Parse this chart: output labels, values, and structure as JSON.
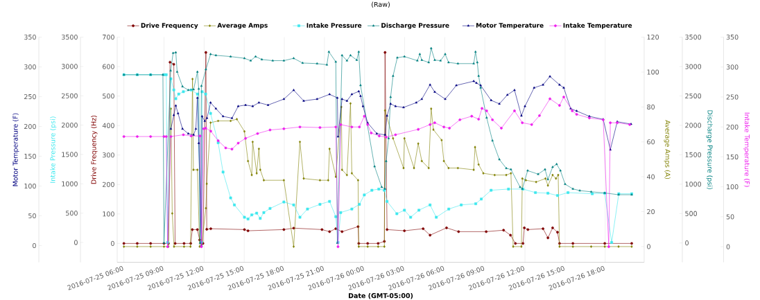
{
  "chart_data": [
    {
      "type": "line",
      "title": "(Raw)",
      "xlabel": "Date (GMT-05:00)",
      "ylabel": "Drive Frequency (Hz)",
      "y2label": "Average Amps (A)",
      "xlim": [
        "2016-07-25T05:30",
        "2016-07-26T20:55"
      ],
      "xticks": [
        {
          "value": "2016-07-25T06:00",
          "label": "2016-07-25 06:00"
        },
        {
          "value": "2016-07-25T09:00",
          "label": "2016-07-25 09:00"
        },
        {
          "value": "2016-07-25T12:00",
          "label": "2016-07-25 12:00"
        },
        {
          "value": "2016-07-25T15:00",
          "label": "2016-07-25 15:00"
        },
        {
          "value": "2016-07-25T18:00",
          "label": "2016-07-25 18:00"
        },
        {
          "value": "2016-07-25T21:00",
          "label": "2016-07-25 21:00"
        },
        {
          "value": "2016-07-26T00:00",
          "label": "2016-07-26 00:00"
        },
        {
          "value": "2016-07-26T03:00",
          "label": "2016-07-26 03:00"
        },
        {
          "value": "2016-07-26T06:00",
          "label": "2016-07-26 06:00"
        },
        {
          "value": "2016-07-26T09:00",
          "label": "2016-07-26 09:00"
        },
        {
          "value": "2016-07-26T12:00",
          "label": "2016-07-26 12:00"
        },
        {
          "value": "2016-07-26T15:00",
          "label": "2016-07-26 15:00"
        },
        {
          "value": "2016-07-26T18:00",
          "label": "2016-07-26 18:00"
        }
      ],
      "ylim": [
        -64,
        700
      ],
      "yticks": [
        0,
        100,
        200,
        300,
        400,
        500,
        600,
        700
      ],
      "y2lim": [
        -9,
        120
      ],
      "y2ticks": [
        0,
        20,
        40,
        60,
        80,
        100,
        120
      ],
      "grid": "x",
      "legend": "top",
      "series": [
        {
          "name": "Drive Frequency",
          "color": "#800000",
          "marker": "circle",
          "x": [
            "2016-07-25T06:00",
            "2016-07-25T07:00",
            "2016-07-25T08:00",
            "2016-07-25T09:00",
            "2016-07-25T09:20",
            "2016-07-25T09:27",
            "2016-07-25T09:44",
            "2016-07-25T09:50",
            "2016-07-25T10:30",
            "2016-07-25T11:00",
            "2016-07-25T11:07",
            "2016-07-25T11:30",
            "2016-07-25T11:40",
            "2016-07-25T11:48",
            "2016-07-25T11:55",
            "2016-07-25T12:08",
            "2016-07-25T12:12",
            "2016-07-25T12:30",
            "2016-07-25T15:01",
            "2016-07-25T15:17",
            "2016-07-25T17:58",
            "2016-07-25T18:42",
            "2016-07-25T20:49",
            "2016-07-25T21:23",
            "2016-07-25T21:51",
            "2016-07-25T22:19",
            "2016-07-25T23:31",
            "2016-07-25T23:34",
            "2016-07-26T00:14",
            "2016-07-26T01:01",
            "2016-07-26T01:29",
            "2016-07-26T01:32",
            "2016-07-26T01:41",
            "2016-07-26T02:59",
            "2016-07-26T04:23",
            "2016-07-26T04:54",
            "2016-07-26T06:08",
            "2016-07-26T07:02",
            "2016-07-26T09:06",
            "2016-07-26T10:24",
            "2016-07-26T10:55",
            "2016-07-26T11:17",
            "2016-07-26T11:51",
            "2016-07-26T11:57",
            "2016-07-26T12:13",
            "2016-07-26T13:21",
            "2016-07-26T13:43",
            "2016-07-26T14:04",
            "2016-07-26T14:26",
            "2016-07-26T14:35",
            "2016-07-26T15:35",
            "2016-07-26T17:58",
            "2016-07-26T19:59"
          ],
          "values": [
            0,
            0,
            0,
            0,
            0,
            615,
            608,
            0,
            0,
            0,
            47,
            47,
            12,
            0,
            0,
            648,
            48,
            50,
            47,
            43,
            47,
            52,
            47,
            40,
            50,
            40,
            57,
            0,
            0,
            0,
            7,
            648,
            47,
            43,
            50,
            28,
            53,
            40,
            40,
            45,
            28,
            0,
            0,
            53,
            47,
            50,
            19,
            53,
            38,
            0,
            0,
            0,
            0
          ]
        },
        {
          "name": "Average Amps",
          "color": "#808000",
          "axis": "y2",
          "marker": "diamond",
          "x": [
            "2016-07-25T06:00",
            "2016-07-25T07:00",
            "2016-07-25T08:00",
            "2016-07-25T09:00",
            "2016-07-25T09:20",
            "2016-07-25T09:31",
            "2016-07-25T09:37",
            "2016-07-25T09:45",
            "2016-07-25T10:30",
            "2016-07-25T10:59",
            "2016-07-25T11:08",
            "2016-07-25T11:12",
            "2016-07-25T11:30",
            "2016-07-25T11:40",
            "2016-07-25T11:48",
            "2016-07-25T12:08",
            "2016-07-25T12:12",
            "2016-07-25T12:29",
            "2016-07-25T13:03",
            "2016-07-25T13:59",
            "2016-07-25T14:27",
            "2016-07-25T15:01",
            "2016-07-25T15:17",
            "2016-07-25T15:34",
            "2016-07-25T15:38",
            "2016-07-25T15:56",
            "2016-07-25T16:06",
            "2016-07-25T16:12",
            "2016-07-25T16:28",
            "2016-07-25T17:58",
            "2016-07-25T18:42",
            "2016-07-25T19:10",
            "2016-07-25T19:27",
            "2016-07-25T20:40",
            "2016-07-25T21:17",
            "2016-07-25T21:23",
            "2016-07-25T21:51",
            "2016-07-25T22:16",
            "2016-07-25T22:19",
            "2016-07-25T22:41",
            "2016-07-25T22:57",
            "2016-07-25T23:03",
            "2016-07-25T23:31",
            "2016-07-25T23:34",
            "2016-07-26T00:14",
            "2016-07-26T01:01",
            "2016-07-26T01:29",
            "2016-07-26T01:32",
            "2016-07-26T02:08",
            "2016-07-26T02:55",
            "2016-07-26T02:59",
            "2016-07-26T03:42",
            "2016-07-26T04:01",
            "2016-07-26T04:17",
            "2016-07-26T04:48",
            "2016-07-26T04:59",
            "2016-07-26T05:09",
            "2016-07-26T05:46",
            "2016-07-26T05:56",
            "2016-07-26T06:17",
            "2016-07-26T06:59",
            "2016-07-26T08:10",
            "2016-07-26T08:16",
            "2016-07-26T08:32",
            "2016-07-26T08:53",
            "2016-07-26T09:44",
            "2016-07-26T10:36",
            "2016-07-26T10:57",
            "2016-07-26T11:07",
            "2016-07-26T11:44",
            "2016-07-26T11:48",
            "2016-07-26T12:04",
            "2016-07-26T12:50",
            "2016-07-26T13:32",
            "2016-07-26T13:43",
            "2016-07-26T14:04",
            "2016-07-26T14:19",
            "2016-07-26T14:29",
            "2016-07-26T14:35",
            "2016-07-26T15:35",
            "2016-07-26T16:57",
            "2016-07-26T17:58",
            "2016-07-26T19:00",
            "2016-07-26T19:59"
          ],
          "values": [
            0,
            0,
            0,
            0,
            0,
            79,
            19,
            0,
            0,
            0,
            96,
            44,
            44,
            0,
            0,
            22,
            36,
            71,
            72,
            72,
            73,
            66,
            49,
            41,
            60,
            42,
            56,
            44,
            38,
            38,
            0,
            60,
            39,
            38,
            38,
            56,
            40,
            80,
            44,
            41,
            82,
            42,
            38,
            0,
            0,
            0,
            0,
            78,
            62,
            45,
            62,
            45,
            59,
            49,
            45,
            79,
            67,
            61,
            49,
            45,
            45,
            44,
            57,
            47,
            42,
            41,
            41,
            42,
            0,
            0,
            39,
            38,
            37,
            39,
            35,
            41,
            39,
            41,
            0,
            0,
            0,
            0,
            0,
            0
          ]
        }
      ]
    },
    {
      "type": "line",
      "ylabel": "Intake Pressure (psi)",
      "y2label": "Discharge Pressure (psi)",
      "xlim": [
        "2016-07-25T05:30",
        "2016-07-26T20:55"
      ],
      "xticks": [
        {
          "value": "2016-07-25T06:00",
          "label": null
        },
        {
          "value": "2016-07-25T09:00",
          "label": null
        },
        {
          "value": "2016-07-25T12:00",
          "label": null
        },
        {
          "value": "2016-07-25T15:00",
          "label": null
        },
        {
          "value": "2016-07-25T18:00",
          "label": null
        },
        {
          "value": "2016-07-25T21:00",
          "label": null
        },
        {
          "value": "2016-07-26T00:00",
          "label": null
        },
        {
          "value": "2016-07-26T03:00",
          "label": null
        },
        {
          "value": "2016-07-26T06:00",
          "label": null
        },
        {
          "value": "2016-07-26T09:00",
          "label": null
        },
        {
          "value": "2016-07-26T12:00",
          "label": null
        },
        {
          "value": "2016-07-26T15:00",
          "label": null
        },
        {
          "value": "2016-07-26T18:00",
          "label": null
        }
      ],
      "ylim": [
        -338,
        3500
      ],
      "yticks": [
        0,
        500,
        1000,
        1500,
        2000,
        2500,
        3000,
        3500
      ],
      "y2lim": [
        -329,
        3500
      ],
      "y2ticks": [
        0,
        500,
        1000,
        1500,
        2000,
        2500,
        3000,
        3500
      ],
      "tick_labels": "y",
      "legend": "top",
      "series": [
        {
          "name": "Intake Pressure",
          "color": "#3ee8ee",
          "marker": "square",
          "x": [
            "2016-07-25T06:00",
            "2016-07-25T07:00",
            "2016-07-25T08:00",
            "2016-07-25T09:00",
            "2016-07-25T09:10",
            "2016-07-25T09:16",
            "2016-07-25T09:31",
            "2016-07-25T09:44",
            "2016-07-25T09:53",
            "2016-07-25T10:06",
            "2016-07-25T10:27",
            "2016-07-25T11:02",
            "2016-07-25T11:30",
            "2016-07-25T11:48",
            "2016-07-25T11:51",
            "2016-07-25T12:07",
            "2016-07-25T12:29",
            "2016-07-25T13:03",
            "2016-07-25T13:25",
            "2016-07-25T13:59",
            "2016-07-25T14:16",
            "2016-07-25T15:01",
            "2016-07-25T15:17",
            "2016-07-25T15:34",
            "2016-07-25T15:56",
            "2016-07-25T16:12",
            "2016-07-25T16:28",
            "2016-07-25T16:56",
            "2016-07-25T17:58",
            "2016-07-25T18:42",
            "2016-07-25T19:10",
            "2016-07-25T19:44",
            "2016-07-25T20:40",
            "2016-07-25T21:23",
            "2016-07-25T21:51",
            "2016-07-25T22:01",
            "2016-07-25T22:13",
            "2016-07-25T23:03",
            "2016-07-25T23:37",
            "2016-07-25T23:59",
            "2016-07-26T00:33",
            "2016-07-26T01:04",
            "2016-07-26T01:29",
            "2016-07-26T01:41",
            "2016-07-26T02:25",
            "2016-07-26T02:59",
            "2016-07-26T03:27",
            "2016-07-26T04:04",
            "2016-07-26T04:54",
            "2016-07-26T05:22",
            "2016-07-26T06:18",
            "2016-07-26T07:14",
            "2016-07-26T08:19",
            "2016-07-26T08:44",
            "2016-07-26T09:28",
            "2016-07-26T10:46",
            "2016-07-26T11:51",
            "2016-07-26T12:47",
            "2016-07-26T13:43",
            "2016-07-26T14:26",
            "2016-07-26T15:13",
            "2016-07-26T17:02",
            "2016-07-26T17:58",
            "2016-07-26T18:29",
            "2016-07-26T19:01",
            "2016-07-26T19:59"
          ],
          "values": [
            2860,
            2860,
            2860,
            2860,
            2860,
            0,
            2790,
            2600,
            2450,
            2530,
            2570,
            2600,
            2530,
            0,
            2570,
            2530,
            2200,
            1700,
            1200,
            760,
            640,
            430,
            400,
            470,
            500,
            410,
            510,
            580,
            690,
            640,
            430,
            570,
            650,
            700,
            440,
            0,
            510,
            570,
            650,
            810,
            890,
            910,
            890,
            700,
            490,
            550,
            430,
            550,
            640,
            430,
            570,
            640,
            660,
            740,
            890,
            910,
            910,
            850,
            840,
            800,
            850,
            830,
            840,
            0,
            830,
            830
          ]
        },
        {
          "name": "Discharge Pressure",
          "color": "#008080",
          "axis": "y2",
          "marker": "triangle",
          "x": [
            "2016-07-25T06:00",
            "2016-07-25T07:00",
            "2016-07-25T08:00",
            "2016-07-25T08:55",
            "2016-07-25T09:00",
            "2016-07-25T09:30",
            "2016-07-25T09:41",
            "2016-07-25T09:53",
            "2016-07-25T09:59",
            "2016-07-25T10:23",
            "2016-07-25T10:49",
            "2016-07-25T11:13",
            "2016-07-25T11:30",
            "2016-07-25T11:36",
            "2016-07-25T11:42",
            "2016-07-25T11:48",
            "2016-07-25T12:08",
            "2016-07-25T12:29",
            "2016-07-25T12:53",
            "2016-07-25T13:59",
            "2016-07-25T15:01",
            "2016-07-25T15:29",
            "2016-07-25T15:51",
            "2016-07-25T16:19",
            "2016-07-25T17:08",
            "2016-07-25T17:58",
            "2016-07-25T18:42",
            "2016-07-25T19:22",
            "2016-07-25T20:27",
            "2016-07-25T21:11",
            "2016-07-25T21:20",
            "2016-07-25T21:51",
            "2016-07-25T21:58",
            "2016-07-25T22:19",
            "2016-07-25T22:41",
            "2016-07-25T22:57",
            "2016-07-25T23:25",
            "2016-07-25T23:34",
            "2016-07-25T23:42",
            "2016-07-26T00:45",
            "2016-07-26T01:17",
            "2016-07-26T01:32",
            "2016-07-26T01:37",
            "2016-07-26T01:48",
            "2016-07-26T01:57",
            "2016-07-26T02:08",
            "2016-07-26T02:27",
            "2016-07-26T02:59",
            "2016-07-26T03:57",
            "2016-07-26T04:08",
            "2016-07-26T04:17",
            "2016-07-26T04:48",
            "2016-07-26T04:59",
            "2016-07-26T05:15",
            "2016-07-26T05:41",
            "2016-07-26T06:02",
            "2016-07-26T06:17",
            "2016-07-26T06:59",
            "2016-07-26T08:10",
            "2016-07-26T08:18",
            "2016-07-26T08:26",
            "2016-07-26T08:32",
            "2016-07-26T08:41",
            "2016-07-26T09:08",
            "2016-07-26T09:34",
            "2016-07-26T10:05",
            "2016-07-26T10:36",
            "2016-07-26T10:57",
            "2016-07-26T11:38",
            "2016-07-26T11:48",
            "2016-07-26T12:12",
            "2016-07-26T12:59",
            "2016-07-26T13:30",
            "2016-07-26T13:43",
            "2016-07-26T14:04",
            "2016-07-26T14:22",
            "2016-07-26T14:39",
            "2016-07-26T15:00",
            "2016-07-26T15:35",
            "2016-07-26T16:06",
            "2016-07-26T16:57",
            "2016-07-26T17:58",
            "2016-07-26T19:00",
            "2016-07-26T19:59"
          ],
          "values": [
            2860,
            2860,
            2860,
            2860,
            0,
            2930,
            3230,
            3240,
            2910,
            2660,
            2600,
            2610,
            2910,
            2620,
            0,
            2670,
            2950,
            3210,
            3190,
            3170,
            3140,
            3100,
            3170,
            3120,
            3100,
            3100,
            3140,
            3060,
            3050,
            3030,
            3250,
            3080,
            0,
            3190,
            3100,
            3190,
            3110,
            3250,
            2680,
            1300,
            950,
            920,
            1390,
            1780,
            2480,
            2840,
            3150,
            3170,
            3100,
            3210,
            3110,
            3070,
            3310,
            3110,
            3100,
            3210,
            3070,
            3050,
            3050,
            3250,
            3070,
            2840,
            2640,
            2130,
            1740,
            1420,
            1270,
            1250,
            950,
            920,
            1230,
            1170,
            1250,
            1080,
            1290,
            1340,
            1230,
            1000,
            920,
            890,
            870,
            850,
            820,
            820
          ]
        }
      ]
    },
    {
      "type": "line",
      "ylabel": "Motor Temperature (F)",
      "y2label": "Intake Temperature (F)",
      "xlim": [
        "2016-07-25T05:30",
        "2016-07-26T20:55"
      ],
      "xticks": [
        {
          "value": "2016-07-25T06:00",
          "label": null
        },
        {
          "value": "2016-07-25T09:00",
          "label": null
        },
        {
          "value": "2016-07-25T12:00",
          "label": null
        },
        {
          "value": "2016-07-25T15:00",
          "label": null
        },
        {
          "value": "2016-07-25T18:00",
          "label": null
        },
        {
          "value": "2016-07-25T21:00",
          "label": null
        },
        {
          "value": "2016-07-26T00:00",
          "label": null
        },
        {
          "value": "2016-07-26T03:00",
          "label": null
        },
        {
          "value": "2016-07-26T06:00",
          "label": null
        },
        {
          "value": "2016-07-26T09:00",
          "label": null
        },
        {
          "value": "2016-07-26T12:00",
          "label": null
        },
        {
          "value": "2016-07-26T15:00",
          "label": null
        },
        {
          "value": "2016-07-26T18:00",
          "label": null
        }
      ],
      "ylim": [
        -28,
        350
      ],
      "yticks": [
        0,
        50,
        100,
        150,
        200,
        250,
        300,
        350
      ],
      "y2lim": [
        -26,
        350
      ],
      "y2ticks": [
        0,
        50,
        100,
        150,
        200,
        250,
        300,
        350
      ],
      "tick_labels": "y",
      "legend": "top",
      "series": [
        {
          "name": "Motor Temperature",
          "color": "#000080",
          "marker": "triangle",
          "x": [
            "2016-07-25T09:31",
            "2016-07-25T09:44",
            "2016-07-25T09:53",
            "2016-07-25T10:03",
            "2016-07-25T10:23",
            "2016-07-25T10:49",
            "2016-07-25T11:13",
            "2016-07-25T11:23",
            "2016-07-25T11:30",
            "2016-07-25T11:36",
            "2016-07-25T11:48",
            "2016-07-25T11:51",
            "2016-07-25T12:03",
            "2016-07-25T12:13",
            "2016-07-25T12:29",
            "2016-07-25T12:53",
            "2016-07-25T13:25",
            "2016-07-25T14:05",
            "2016-07-25T14:33",
            "2016-07-25T15:06",
            "2016-07-25T15:38",
            "2016-07-25T16:06",
            "2016-07-25T16:47",
            "2016-07-25T17:58",
            "2016-07-25T18:42",
            "2016-07-25T19:27",
            "2016-07-25T20:27",
            "2016-07-25T21:23",
            "2016-07-25T21:58",
            "2016-07-25T22:01",
            "2016-07-25T22:19",
            "2016-07-25T22:41",
            "2016-07-25T23:03",
            "2016-07-25T23:34",
            "2016-07-25T23:42",
            "2016-07-25T23:53",
            "2016-07-26T00:14",
            "2016-07-26T00:55",
            "2016-07-26T01:32",
            "2016-07-26T01:41",
            "2016-07-26T01:57",
            "2016-07-26T02:19",
            "2016-07-26T02:55",
            "2016-07-26T03:52",
            "2016-07-26T04:17",
            "2016-07-26T04:54",
            "2016-07-26T05:15",
            "2016-07-26T06:02",
            "2016-07-26T06:52",
            "2016-07-26T08:10",
            "2016-07-26T08:22",
            "2016-07-26T08:41",
            "2016-07-26T09:28",
            "2016-07-26T10:05",
            "2016-07-26T10:41",
            "2016-07-26T11:13",
            "2016-07-26T11:44",
            "2016-07-26T12:00",
            "2016-07-26T12:41",
            "2016-07-26T13:21",
            "2016-07-26T13:52",
            "2016-07-26T14:35",
            "2016-07-26T14:54",
            "2016-07-26T15:25",
            "2016-07-26T15:52",
            "2016-07-26T16:49",
            "2016-07-26T17:51",
            "2016-07-26T18:23",
            "2016-07-26T18:54",
            "2016-07-26T19:56"
          ],
          "values": [
            196,
            219,
            235,
            222,
            196,
            188,
            186,
            196,
            248,
            172,
            0,
            217,
            209,
            214,
            240,
            230,
            217,
            214,
            234,
            236,
            234,
            240,
            236,
            246,
            261,
            243,
            246,
            254,
            248,
            183,
            246,
            243,
            254,
            259,
            251,
            234,
            206,
            188,
            186,
            218,
            238,
            234,
            232,
            240,
            246,
            270,
            258,
            246,
            269,
            276,
            273,
            269,
            244,
            238,
            253,
            261,
            218,
            234,
            265,
            270,
            284,
            270,
            265,
            230,
            226,
            217,
            212,
            161,
            208,
            204
          ]
        },
        {
          "name": "Intake Temperature",
          "color": "#ee22ee",
          "axis": "y2",
          "marker": "circle",
          "x": [
            "2016-07-25T06:00",
            "2016-07-25T07:00",
            "2016-07-25T08:00",
            "2016-07-25T09:00",
            "2016-07-25T09:10",
            "2016-07-25T09:16",
            "2016-07-25T09:31",
            "2016-07-25T10:27",
            "2016-07-25T11:02",
            "2016-07-25T11:42",
            "2016-07-25T11:48",
            "2016-07-25T11:58",
            "2016-07-25T12:07",
            "2016-07-25T12:30",
            "2016-07-25T13:03",
            "2016-07-25T13:37",
            "2016-07-25T14:05",
            "2016-07-25T14:33",
            "2016-07-25T15:06",
            "2016-07-25T16:00",
            "2016-07-25T16:56",
            "2016-07-25T17:58",
            "2016-07-25T19:10",
            "2016-07-25T20:40",
            "2016-07-25T21:51",
            "2016-07-25T22:01",
            "2016-07-25T22:13",
            "2016-07-25T23:03",
            "2016-07-25T23:37",
            "2016-07-25T23:59",
            "2016-07-26T00:14",
            "2016-07-26T00:30",
            "2016-07-26T01:06",
            "2016-07-26T01:37",
            "2016-07-26T02:19",
            "2016-07-26T04:01",
            "2016-07-26T04:54",
            "2016-07-26T05:15",
            "2016-07-26T05:56",
            "2016-07-26T06:21",
            "2016-07-26T07:08",
            "2016-07-26T08:01",
            "2016-07-26T08:32",
            "2016-07-26T08:47",
            "2016-07-26T09:08",
            "2016-07-26T09:34",
            "2016-07-26T10:14",
            "2016-07-26T11:13",
            "2016-07-26T11:48",
            "2016-07-26T12:30",
            "2016-07-26T13:05",
            "2016-07-26T13:52",
            "2016-07-26T14:35",
            "2016-07-26T14:54",
            "2016-07-26T15:32",
            "2016-07-26T15:52",
            "2016-07-26T16:49",
            "2016-07-26T17:51",
            "2016-07-26T18:16",
            "2016-07-26T18:23",
            "2016-07-26T18:54",
            "2016-07-26T19:50"
          ],
          "values": [
            184,
            184,
            184,
            184,
            184,
            0,
            184,
            187,
            185,
            185,
            0,
            197,
            198,
            193,
            177,
            165,
            163,
            173,
            181,
            189,
            195,
            197,
            200,
            199,
            200,
            0,
            204,
            200,
            200,
            218,
            204,
            190,
            185,
            183,
            187,
            196,
            204,
            207,
            200,
            198,
            212,
            218,
            213,
            231,
            227,
            212,
            198,
            227,
            207,
            204,
            219,
            247,
            236,
            250,
            227,
            221,
            215,
            212,
            0,
            207,
            207,
            204
          ]
        }
      ]
    }
  ]
}
